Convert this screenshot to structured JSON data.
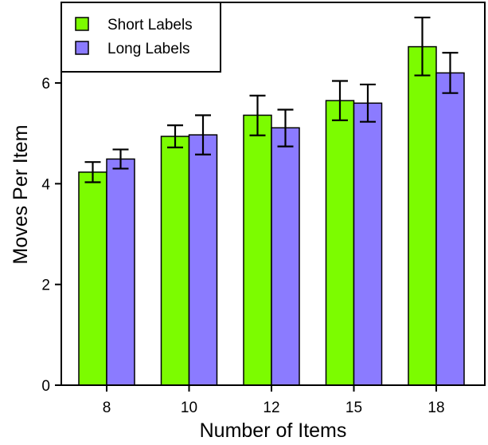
{
  "chart_data": {
    "type": "bar",
    "title": "",
    "xlabel": "Number of Items",
    "ylabel": "Moves Per Item",
    "categories": [
      "8",
      "10",
      "12",
      "15",
      "18"
    ],
    "series": [
      {
        "name": "Short Labels",
        "color": "#7CFC00",
        "values": [
          4.23,
          4.94,
          5.36,
          5.65,
          6.72
        ],
        "error_low": [
          4.03,
          4.72,
          4.96,
          5.26,
          6.15
        ],
        "error_high": [
          4.43,
          5.16,
          5.75,
          6.04,
          7.3
        ]
      },
      {
        "name": "Long Labels",
        "color": "#8B7BFF",
        "values": [
          4.49,
          4.97,
          5.11,
          5.6,
          6.2
        ],
        "error_low": [
          4.3,
          4.58,
          4.74,
          5.23,
          5.8
        ],
        "error_high": [
          4.68,
          5.36,
          5.47,
          5.97,
          6.6
        ]
      }
    ],
    "yticks": [
      "0",
      "2",
      "4",
      "6"
    ],
    "ylim": [
      0,
      7.6
    ],
    "grid": false,
    "legend_position": "top-left"
  }
}
